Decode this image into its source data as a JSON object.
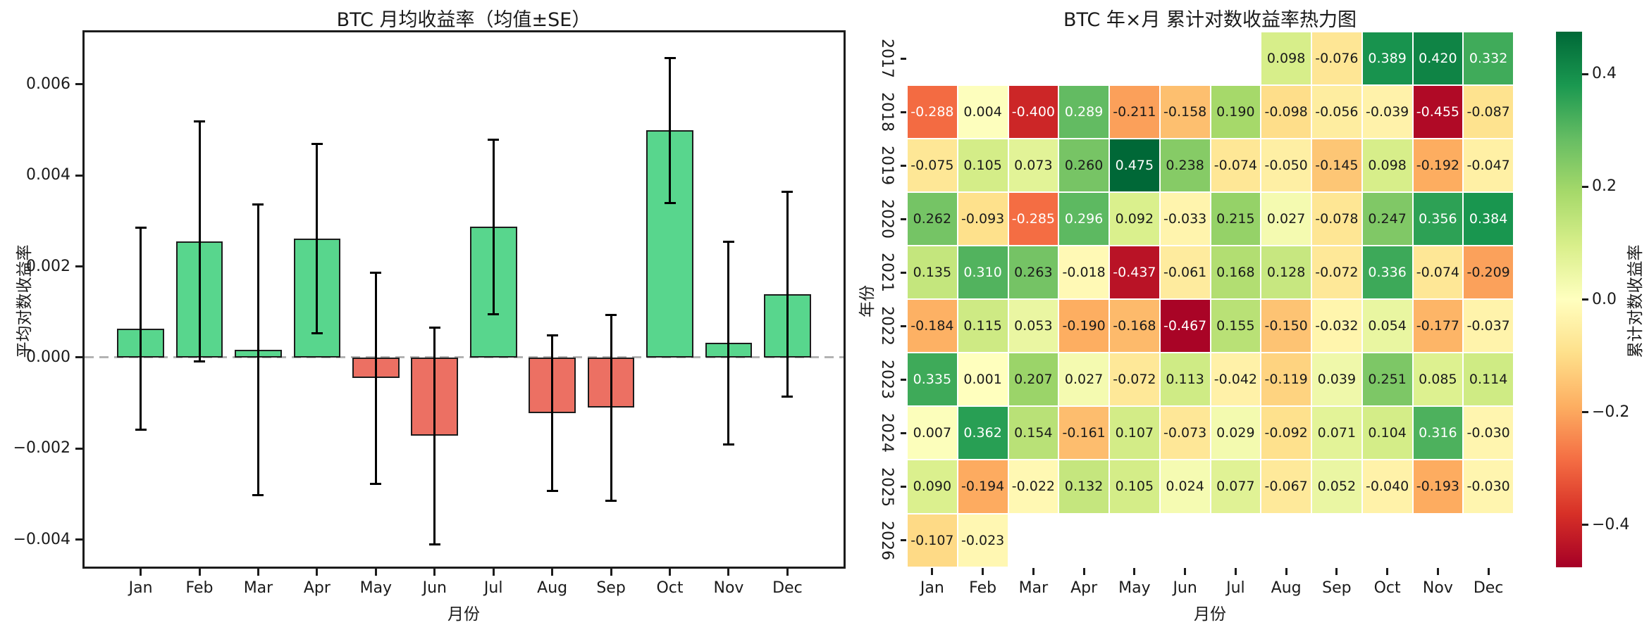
{
  "chart_data": [
    {
      "type": "bar",
      "title": "BTC 月均收益率（均值±SE）",
      "xlabel": "月份",
      "ylabel": "平均对数收益率",
      "categories": [
        "Jan",
        "Feb",
        "Mar",
        "Apr",
        "May",
        "Jun",
        "Jul",
        "Aug",
        "Sep",
        "Oct",
        "Nov",
        "Dec"
      ],
      "values": [
        0.00063,
        0.00255,
        0.00017,
        0.00262,
        -0.00045,
        -0.00172,
        0.00287,
        -0.00122,
        -0.0011,
        0.00499,
        0.00032,
        0.00139
      ],
      "errors_se": [
        0.00222,
        0.00263,
        0.0032,
        0.00208,
        0.00232,
        0.00238,
        0.00192,
        0.00171,
        0.00204,
        0.00159,
        0.00223,
        0.00225
      ],
      "ylim": [
        -0.00464,
        0.00719
      ],
      "yticks": {
        "values": [
          0.006,
          0.004,
          0.002,
          0.0,
          -0.002,
          -0.004
        ],
        "labels": [
          "0.006",
          "0.004",
          "0.002",
          "0.000",
          "−0.002",
          "−0.004"
        ]
      },
      "grid": false,
      "zero_line": true,
      "colors": {
        "positive_bar": "#58d68d",
        "negative_bar": "#ec7063",
        "bar_edge": "#1c1c1c",
        "error_bar": "#000000",
        "zero_line": "#b3b3b3"
      }
    },
    {
      "type": "heatmap",
      "title": "BTC 年×月 累计对数收益率热力图",
      "xlabel": "月份",
      "ylabel": "年份",
      "columns": [
        "Jan",
        "Feb",
        "Mar",
        "Apr",
        "May",
        "Jun",
        "Jul",
        "Aug",
        "Sep",
        "Oct",
        "Nov",
        "Dec"
      ],
      "rows": [
        "2017",
        "2018",
        "2019",
        "2020",
        "2021",
        "2022",
        "2023",
        "2024",
        "2025",
        "2026"
      ],
      "values": [
        [
          null,
          null,
          null,
          null,
          null,
          null,
          null,
          0.098,
          -0.076,
          0.389,
          0.42,
          0.332
        ],
        [
          -0.288,
          0.004,
          -0.4,
          0.289,
          -0.211,
          -0.158,
          0.19,
          -0.098,
          -0.056,
          -0.039,
          -0.455,
          -0.087
        ],
        [
          -0.075,
          0.105,
          0.073,
          0.26,
          0.475,
          0.238,
          -0.074,
          -0.05,
          -0.145,
          0.098,
          -0.192,
          -0.047
        ],
        [
          0.262,
          -0.093,
          -0.285,
          0.296,
          0.092,
          -0.033,
          0.215,
          0.027,
          -0.078,
          0.247,
          0.356,
          0.384
        ],
        [
          0.135,
          0.31,
          0.263,
          -0.018,
          -0.437,
          -0.061,
          0.168,
          0.128,
          -0.072,
          0.336,
          -0.074,
          -0.209
        ],
        [
          -0.184,
          0.115,
          0.053,
          -0.19,
          -0.168,
          -0.467,
          0.155,
          -0.15,
          -0.032,
          0.054,
          -0.177,
          -0.037
        ],
        [
          0.335,
          0.001,
          0.207,
          0.027,
          -0.072,
          0.113,
          -0.042,
          -0.119,
          0.039,
          0.251,
          0.085,
          0.114
        ],
        [
          0.007,
          0.362,
          0.154,
          -0.161,
          0.107,
          -0.073,
          0.029,
          -0.092,
          0.071,
          0.104,
          0.316,
          -0.03
        ],
        [
          0.09,
          -0.194,
          -0.022,
          0.132,
          0.105,
          0.024,
          0.077,
          -0.067,
          0.052,
          -0.04,
          -0.193,
          -0.03
        ],
        [
          -0.107,
          -0.023,
          null,
          null,
          null,
          null,
          null,
          null,
          null,
          null,
          null,
          null
        ]
      ],
      "value_format_decimals": 3,
      "colorbar": {
        "label": "累计对数收益率",
        "tick_values": [
          0.4,
          0.2,
          0.0,
          -0.2,
          -0.4
        ],
        "tick_labels": [
          "0.4",
          "0.2",
          "0.0",
          "−0.2",
          "−0.4"
        ],
        "vmin": -0.475,
        "vmax": 0.475,
        "colormap": "RdYlGn",
        "stops": [
          "#a50026",
          "#d73027",
          "#f46d43",
          "#fdae61",
          "#fee08b",
          "#ffffbf",
          "#d9ef8b",
          "#a6d96a",
          "#66bd63",
          "#1a9850",
          "#006837"
        ]
      }
    }
  ]
}
